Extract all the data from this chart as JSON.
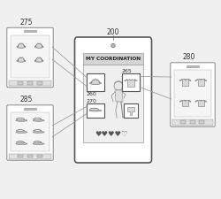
{
  "bg_color": "#f0f0f0",
  "title_label": "200",
  "title_text": "MY COORDINATION",
  "label_275": "275",
  "label_285": "285",
  "label_280": "280",
  "label_260": "260",
  "label_265": "265",
  "label_270": "270",
  "line_color": "#999999",
  "border_color": "#666666",
  "text_color": "#333333",
  "heart_symbols": "♥♥♥♥♡",
  "phone_facecolor": "#ffffff",
  "phone_border": "#888888",
  "screen_facecolor": "#f8f8f8",
  "title_bar_color": "#d8d8d8"
}
